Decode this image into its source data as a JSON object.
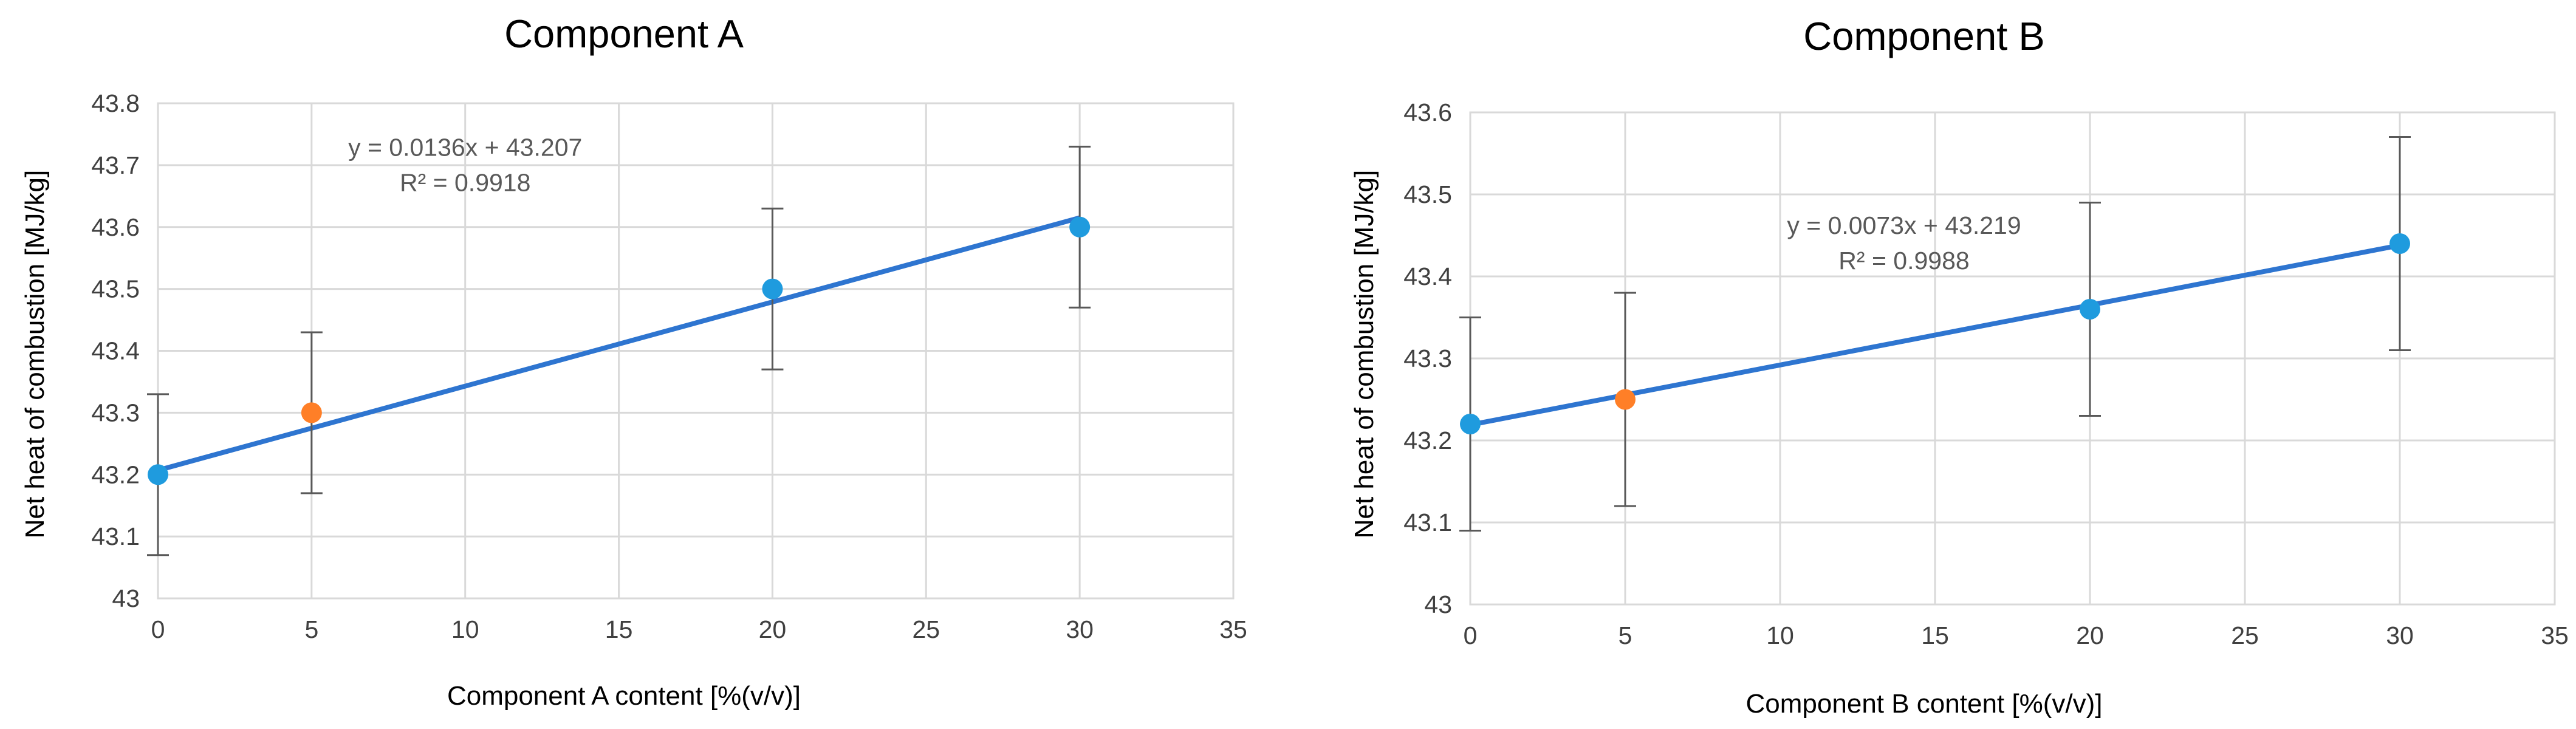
{
  "chart_data": [
    {
      "type": "scatter",
      "title": "Component A",
      "xlabel": "Component A content [%(v/v)]",
      "ylabel": "Net heat of combustion [MJ/kg]",
      "xlim": [
        0,
        35
      ],
      "ylim": [
        43,
        43.8
      ],
      "xticks": [
        0,
        5,
        10,
        15,
        20,
        25,
        30,
        35
      ],
      "xtick_labels": [
        "0",
        "5",
        "10",
        "15",
        "20",
        "25",
        "30",
        "35"
      ],
      "yticks": [
        43,
        43.1,
        43.2,
        43.3,
        43.4,
        43.5,
        43.6,
        43.7,
        43.8
      ],
      "ytick_labels": [
        "43",
        "43.1",
        "43.2",
        "43.3",
        "43.4",
        "43.5",
        "43.6",
        "43.7",
        "43.8"
      ],
      "grid": true,
      "points": [
        {
          "x": 0,
          "y": 43.2,
          "error": 0.13,
          "color": "#1f9bde"
        },
        {
          "x": 5,
          "y": 43.3,
          "error": 0.13,
          "color": "#ff7f27"
        },
        {
          "x": 20,
          "y": 43.5,
          "error": 0.13,
          "color": "#1f9bde"
        },
        {
          "x": 30,
          "y": 43.6,
          "error": 0.13,
          "color": "#1f9bde"
        }
      ],
      "trendline": {
        "slope": 0.0136,
        "intercept": 43.207,
        "x_range": [
          0,
          30
        ],
        "color": "#2e75d0"
      },
      "equation": "y = 0.0136x + 43.207",
      "r_squared": "R² = 0.9918",
      "annotation_anchor": {
        "x": 10,
        "y": 43.715
      }
    },
    {
      "type": "scatter",
      "title": "Component B",
      "xlabel": "Component B content [%(v/v)]",
      "ylabel": "Net heat of combustion [MJ/kg]",
      "xlim": [
        0,
        35
      ],
      "ylim": [
        43,
        43.6
      ],
      "xticks": [
        0,
        5,
        10,
        15,
        20,
        25,
        30,
        35
      ],
      "xtick_labels": [
        "0",
        "5",
        "10",
        "15",
        "20",
        "25",
        "30",
        "35"
      ],
      "yticks": [
        43,
        43.1,
        43.2,
        43.3,
        43.4,
        43.5,
        43.6
      ],
      "ytick_labels": [
        "43",
        "43.1",
        "43.2",
        "43.3",
        "43.4",
        "43.5",
        "43.6"
      ],
      "grid": true,
      "points": [
        {
          "x": 0,
          "y": 43.22,
          "error": 0.13,
          "color": "#1f9bde"
        },
        {
          "x": 5,
          "y": 43.25,
          "error": 0.13,
          "color": "#ff7f27"
        },
        {
          "x": 20,
          "y": 43.36,
          "error": 0.13,
          "color": "#1f9bde"
        },
        {
          "x": 30,
          "y": 43.44,
          "error": 0.13,
          "color": "#1f9bde"
        }
      ],
      "trendline": {
        "slope": 0.0073,
        "intercept": 43.219,
        "x_range": [
          0,
          30
        ],
        "color": "#2e75d0"
      },
      "equation": "y = 0.0073x + 43.219",
      "r_squared": "R² = 0.9988",
      "annotation_anchor": {
        "x": 14,
        "y": 43.452
      }
    }
  ]
}
